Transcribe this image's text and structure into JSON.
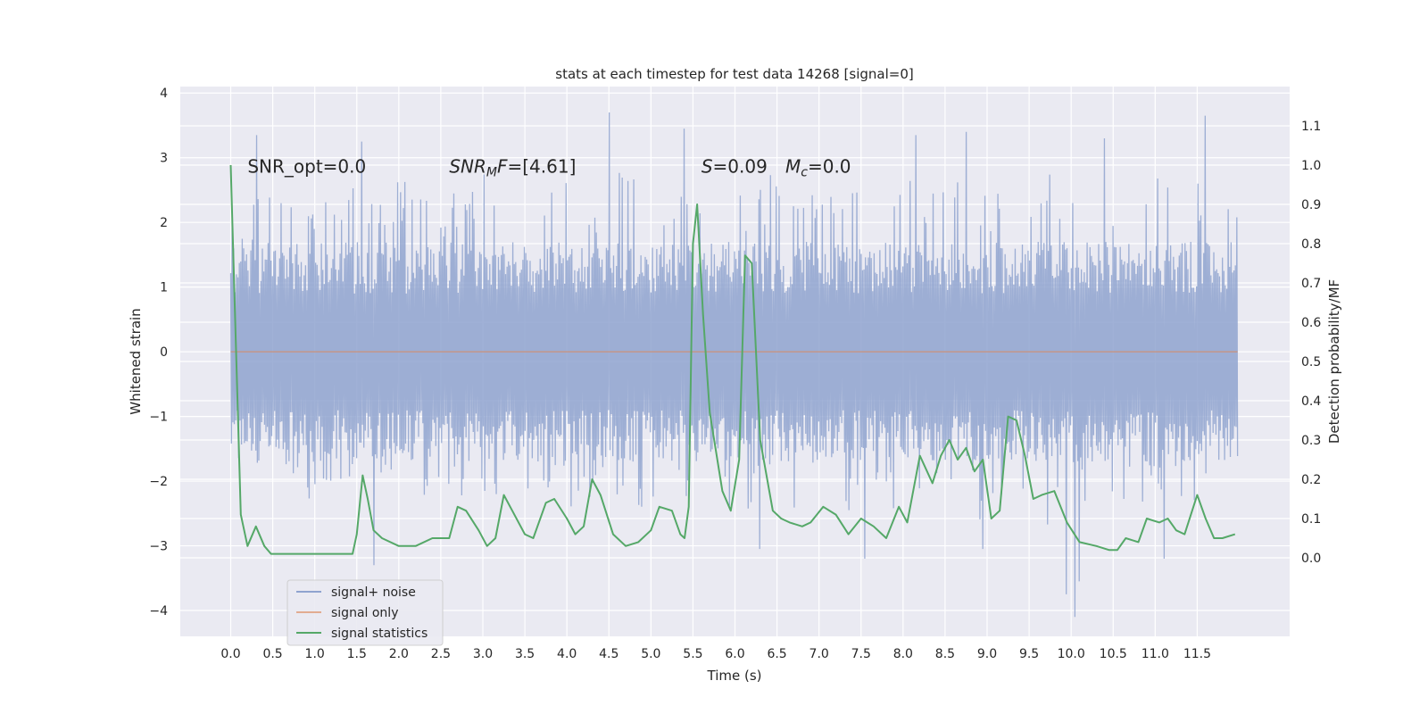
{
  "chart_data": {
    "type": "line",
    "title": "stats at each timestep for test data 14268 [signal=0]",
    "xlabel": "Time (s)",
    "ylabel_left": "Whitened strain",
    "ylabel_right": "Detection probability/MF",
    "xlim": [
      -0.6,
      12.6
    ],
    "ylim_left": [
      -4.4,
      4.1
    ],
    "ylim_right": [
      -0.2,
      1.2
    ],
    "x_ticks": [
      0.0,
      0.5,
      1.0,
      1.5,
      2.0,
      2.5,
      3.0,
      3.5,
      4.0,
      4.5,
      5.0,
      5.5,
      6.0,
      6.5,
      7.0,
      7.5,
      8.0,
      8.5,
      9.0,
      9.5,
      10.0,
      10.5,
      11.0,
      11.5
    ],
    "x_tick_labels": [
      "0.0",
      "0.5",
      "1.0",
      "1.5",
      "2.0",
      "2.5",
      "3.0",
      "3.5",
      "4.0",
      "4.5",
      "5.0",
      "5.5",
      "6.0",
      "6.5",
      "7.0",
      "7.5",
      "8.0",
      "8.5",
      "9.0",
      "9.5",
      "10.0",
      "10.5",
      "11.0",
      "11.5"
    ],
    "y_left_ticks": [
      -4,
      -3,
      -2,
      -1,
      0,
      1,
      2,
      3,
      4
    ],
    "y_left_tick_labels": [
      "−4",
      "−3",
      "−2",
      "−1",
      "0",
      "1",
      "2",
      "3",
      "4"
    ],
    "y_right_ticks": [
      0.0,
      0.1,
      0.2,
      0.3,
      0.4,
      0.5,
      0.6,
      0.7,
      0.8,
      0.9,
      1.0,
      1.1
    ],
    "y_right_tick_labels": [
      "0.0",
      "0.1",
      "0.2",
      "0.3",
      "0.4",
      "0.5",
      "0.6",
      "0.7",
      "0.8",
      "0.9",
      "1.0",
      "1.1"
    ],
    "grid": true,
    "legend_position": "lower-left",
    "annotations": [
      {
        "key": "snr_opt",
        "text": "SNR_opt=0.0",
        "x": 0.2,
        "y": 2.85
      },
      {
        "key": "snr_mf",
        "text": "SNR",
        "sub": "M",
        "rest": "F=[4.61]",
        "x": 2.6,
        "y": 2.85
      },
      {
        "key": "s_val",
        "text": "S",
        "rest": "=0.09",
        "x": 5.6,
        "y": 2.85
      },
      {
        "key": "mc_val",
        "text": "M",
        "sub": "c",
        "rest": "=0.0",
        "x": 6.6,
        "y": 2.85
      }
    ],
    "series": [
      {
        "name": "signal+ noise",
        "color": "#8fa3cf",
        "axis": "left",
        "x_start": 0.0,
        "x_end": 11.98,
        "envelope_upper": [
          2.1,
          2.3,
          2.6,
          2.5,
          2.7,
          2.4,
          2.6,
          2.5,
          2.8,
          2.6,
          2.4,
          2.7,
          2.9,
          2.6,
          2.5,
          2.7,
          2.8,
          2.6,
          2.5,
          2.9,
          2.7,
          2.6,
          2.8,
          2.5,
          2.7,
          2.6,
          2.8,
          2.9,
          2.7,
          2.6,
          2.8,
          2.9,
          2.6,
          2.7,
          2.8,
          3.0,
          2.7,
          2.6,
          2.8,
          2.7,
          2.9,
          2.6,
          2.8,
          2.7,
          2.9,
          2.8,
          2.6,
          2.7,
          3.0,
          2.9
        ],
        "envelope_lower": [
          -1.6,
          -1.9,
          -2.2,
          -2.0,
          -2.4,
          -2.1,
          -2.3,
          -2.2,
          -2.0,
          -2.3,
          -2.5,
          -2.2,
          -2.4,
          -2.3,
          -2.6,
          -2.2,
          -2.4,
          -2.5,
          -2.3,
          -2.6,
          -2.4,
          -2.2,
          -2.5,
          -2.3,
          -2.4,
          -2.6,
          -2.2,
          -2.5,
          -2.4,
          -2.3,
          -2.6,
          -2.4,
          -2.5,
          -2.2,
          -2.6,
          -2.4,
          -2.5,
          -2.7,
          -2.3,
          -2.6,
          -2.8,
          -2.4,
          -2.5,
          -2.3,
          -2.6,
          -2.4,
          -2.5,
          -2.3,
          -2.2,
          -1.8
        ],
        "spikes": [
          [
            0.3,
            3.35
          ],
          [
            1.55,
            3.25
          ],
          [
            4.5,
            3.7
          ],
          [
            5.4,
            3.45
          ],
          [
            8.15,
            3.35
          ],
          [
            8.75,
            3.4
          ],
          [
            10.4,
            3.3
          ],
          [
            11.6,
            3.65
          ],
          [
            1.7,
            -3.3
          ],
          [
            6.3,
            -3.05
          ],
          [
            8.95,
            -3.05
          ],
          [
            9.95,
            -3.75
          ],
          [
            10.05,
            -4.1
          ],
          [
            10.1,
            -3.55
          ],
          [
            11.1,
            -3.2
          ],
          [
            7.55,
            -3.2
          ]
        ]
      },
      {
        "name": "signal only",
        "color": "#dd8452",
        "axis": "left",
        "x": [
          0.0,
          11.98
        ],
        "y": [
          0.0,
          0.0
        ]
      },
      {
        "name": "signal statistics",
        "color": "#55a868",
        "axis": "right",
        "x": [
          0.0,
          0.12,
          0.2,
          0.3,
          0.4,
          0.48,
          0.55,
          0.65,
          0.8,
          0.95,
          1.05,
          1.2,
          1.3,
          1.45,
          1.5,
          1.57,
          1.63,
          1.7,
          1.8,
          2.0,
          2.2,
          2.4,
          2.6,
          2.7,
          2.8,
          2.95,
          3.05,
          3.15,
          3.25,
          3.35,
          3.5,
          3.6,
          3.75,
          3.85,
          4.0,
          4.1,
          4.2,
          4.3,
          4.4,
          4.55,
          4.7,
          4.85,
          5.0,
          5.1,
          5.25,
          5.35,
          5.4,
          5.45,
          5.5,
          5.55,
          5.62,
          5.7,
          5.85,
          5.95,
          6.05,
          6.12,
          6.2,
          6.3,
          6.45,
          6.55,
          6.65,
          6.8,
          6.9,
          7.05,
          7.2,
          7.35,
          7.5,
          7.65,
          7.8,
          7.95,
          8.05,
          8.2,
          8.35,
          8.45,
          8.55,
          8.65,
          8.75,
          8.85,
          8.95,
          9.05,
          9.15,
          9.25,
          9.35,
          9.45,
          9.55,
          9.65,
          9.8,
          9.95,
          10.1,
          10.3,
          10.45,
          10.55,
          10.65,
          10.8,
          10.9,
          11.05,
          11.15,
          11.25,
          11.35,
          11.5,
          11.6,
          11.7,
          11.8,
          11.95
        ],
        "y": [
          1.0,
          0.11,
          0.03,
          0.08,
          0.03,
          0.01,
          0.01,
          0.01,
          0.01,
          0.01,
          0.01,
          0.01,
          0.01,
          0.01,
          0.06,
          0.21,
          0.15,
          0.07,
          0.05,
          0.03,
          0.03,
          0.05,
          0.05,
          0.13,
          0.12,
          0.07,
          0.03,
          0.05,
          0.16,
          0.12,
          0.06,
          0.05,
          0.14,
          0.15,
          0.1,
          0.06,
          0.08,
          0.2,
          0.16,
          0.06,
          0.03,
          0.04,
          0.07,
          0.13,
          0.12,
          0.06,
          0.05,
          0.13,
          0.8,
          0.9,
          0.62,
          0.37,
          0.17,
          0.12,
          0.25,
          0.77,
          0.75,
          0.3,
          0.12,
          0.1,
          0.09,
          0.08,
          0.09,
          0.13,
          0.11,
          0.06,
          0.1,
          0.08,
          0.05,
          0.13,
          0.09,
          0.26,
          0.19,
          0.26,
          0.3,
          0.25,
          0.28,
          0.22,
          0.25,
          0.1,
          0.12,
          0.36,
          0.35,
          0.26,
          0.15,
          0.16,
          0.17,
          0.09,
          0.04,
          0.03,
          0.02,
          0.02,
          0.05,
          0.04,
          0.1,
          0.09,
          0.1,
          0.07,
          0.06,
          0.16,
          0.1,
          0.05,
          0.05,
          0.06
        ]
      }
    ],
    "legend": [
      {
        "key": "noise",
        "label": "signal+ noise",
        "color": "#8fa3cf"
      },
      {
        "key": "sig",
        "label": "signal only",
        "color": "#dd8452"
      },
      {
        "key": "stat",
        "label": "signal statistics",
        "color": "#55a868"
      }
    ]
  }
}
